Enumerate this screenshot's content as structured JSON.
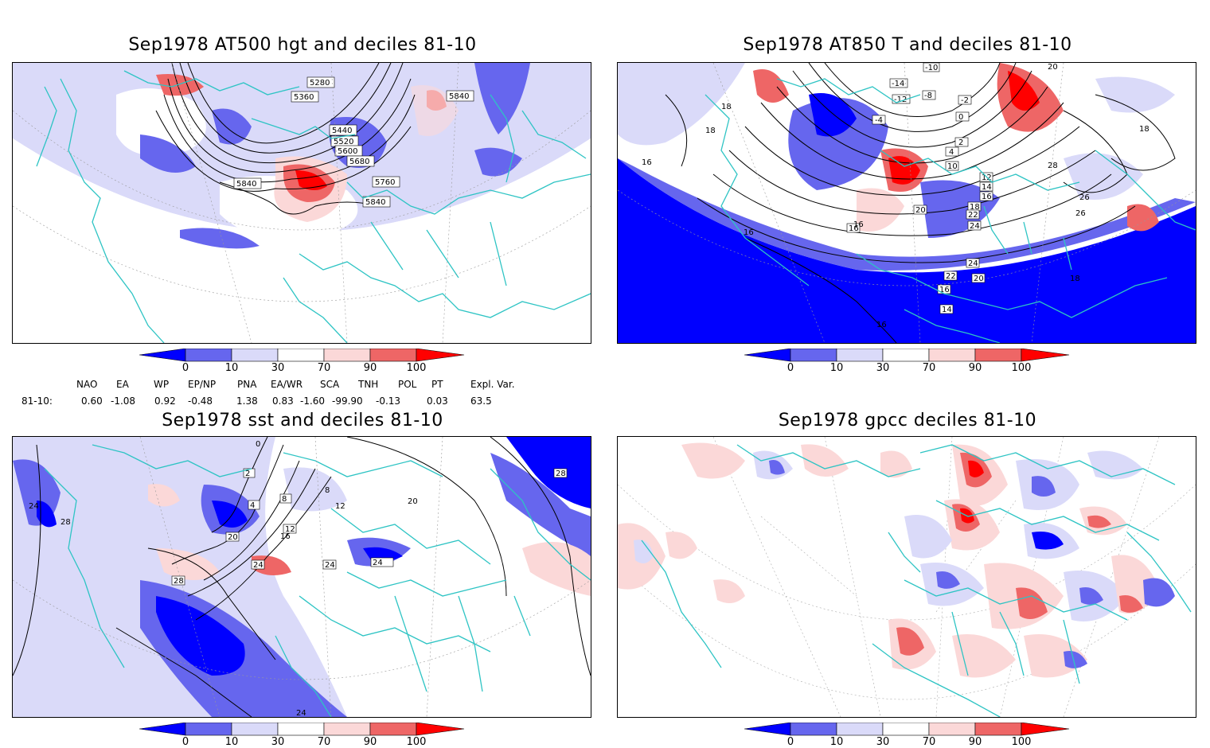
{
  "panels": [
    {
      "title": "Sep1978 AT500 hgt and deciles 81-10",
      "contour_labels": [
        "5280",
        "5360",
        "5440",
        "5520",
        "5600",
        "5680",
        "5760",
        "5840",
        "5840",
        "5840",
        "5840"
      ]
    },
    {
      "title": "Sep1978 AT850 T and deciles 81-10",
      "contour_labels": [
        "-10",
        "-14",
        "-12",
        "-8",
        "-4",
        "-2",
        "0",
        "2",
        "4",
        "8",
        "10",
        "12",
        "14",
        "16",
        "16",
        "16",
        "16",
        "16",
        "18",
        "18",
        "18",
        "18",
        "20",
        "20",
        "22",
        "22",
        "24",
        "24",
        "26",
        "26",
        "28",
        "18",
        "16",
        "14",
        "16"
      ]
    },
    {
      "title": "Sep1978 sst and deciles 81-10",
      "contour_labels": [
        "24",
        "28",
        "0",
        "2",
        "4",
        "8",
        "12",
        "16",
        "20",
        "24",
        "28",
        "20",
        "12",
        "8",
        "24",
        "24",
        "28",
        "24"
      ]
    },
    {
      "title": "Sep1978 gpcc deciles 81-10",
      "contour_labels": []
    }
  ],
  "colorbar": {
    "ticks": [
      "0",
      "10",
      "30",
      "70",
      "90",
      "100"
    ],
    "colors": [
      "#0000ff",
      "#6666ee",
      "#dadaf9",
      "#ffffff",
      "#fbd8d8",
      "#ee6666",
      "#ff0000"
    ]
  },
  "indices": {
    "headers": [
      "NAO",
      "EA",
      "WP",
      "EP/NP",
      "PNA",
      "EA/WR",
      "SCA",
      "TNH",
      "POL",
      "PT",
      "Expl. Var."
    ],
    "row_label": "81-10:",
    "values": [
      "0.60",
      "-1.08",
      "0.92",
      "-0.48",
      "1.38",
      "0.83",
      "-1.60",
      "-99.90",
      "-0.13",
      "0.03",
      "63.5"
    ]
  },
  "colors": {
    "coastline": "#2ec4c4",
    "deficit_strong": "#0000ff",
    "surplus_strong": "#ff0000"
  }
}
